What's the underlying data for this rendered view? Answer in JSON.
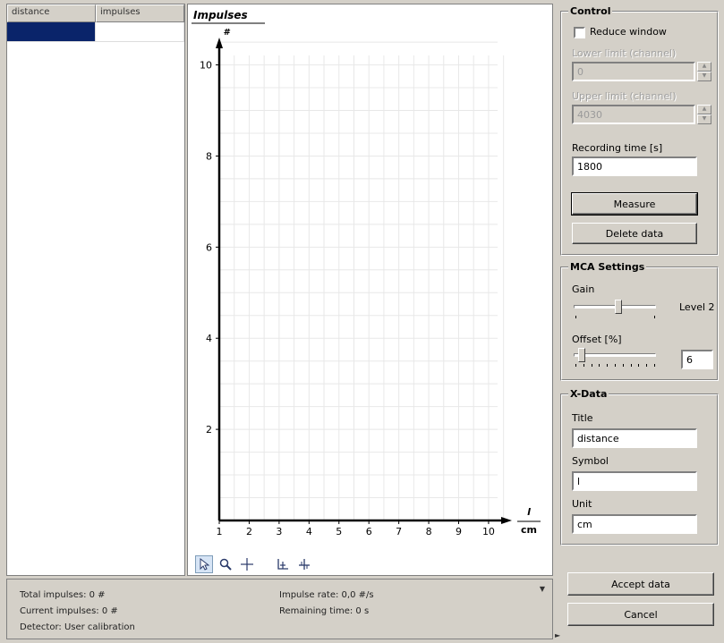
{
  "table": {
    "columns": [
      "distance",
      "impulses"
    ]
  },
  "status": {
    "total_impulses": "Total impulses:  0 #",
    "current_impulses": "Current impulses:  0 #",
    "detector": "Detector:  User calibration",
    "impulse_rate": "Impulse rate:  0,0 #/s",
    "remaining_time": "Remaining time:  0 s"
  },
  "control": {
    "title": "Control",
    "reduce_window_label": "Reduce window",
    "lower_limit_label": "Lower limit (channel)",
    "lower_limit_value": "0",
    "upper_limit_label": "Upper limit (channel)",
    "upper_limit_value": "4030",
    "recording_time_label": "Recording time [s]",
    "recording_time_value": "1800",
    "measure_label": "Measure",
    "delete_data_label": "Delete data"
  },
  "mca": {
    "title": "MCA Settings",
    "gain_label": "Gain",
    "gain_level": "Level 2",
    "gain_position": 0.55,
    "offset_label": "Offset [%]",
    "offset_value": "6",
    "offset_position": 0.06
  },
  "xdata": {
    "title": "X-Data",
    "title_label": "Title",
    "title_value": "distance",
    "symbol_label": "Symbol",
    "symbol_value": "l",
    "unit_label": "Unit",
    "unit_value": "cm"
  },
  "actions": {
    "accept_label": "Accept data",
    "cancel_label": "Cancel"
  },
  "icons": [
    "pointer-icon",
    "zoom-icon",
    "crosshair-icon",
    "axis-scale-icon",
    "move-icon"
  ],
  "chart_data": {
    "type": "scatter",
    "title": "Impulses",
    "ylabel": "#",
    "xlabel": "l",
    "xunit": "cm",
    "x_ticks": [
      1,
      2,
      3,
      4,
      5,
      6,
      7,
      8,
      9,
      10
    ],
    "y_ticks": [
      2,
      4,
      6,
      8,
      10
    ],
    "xlim": [
      1,
      10.6
    ],
    "ylim": [
      0,
      10.6
    ],
    "grid": true,
    "series": []
  }
}
